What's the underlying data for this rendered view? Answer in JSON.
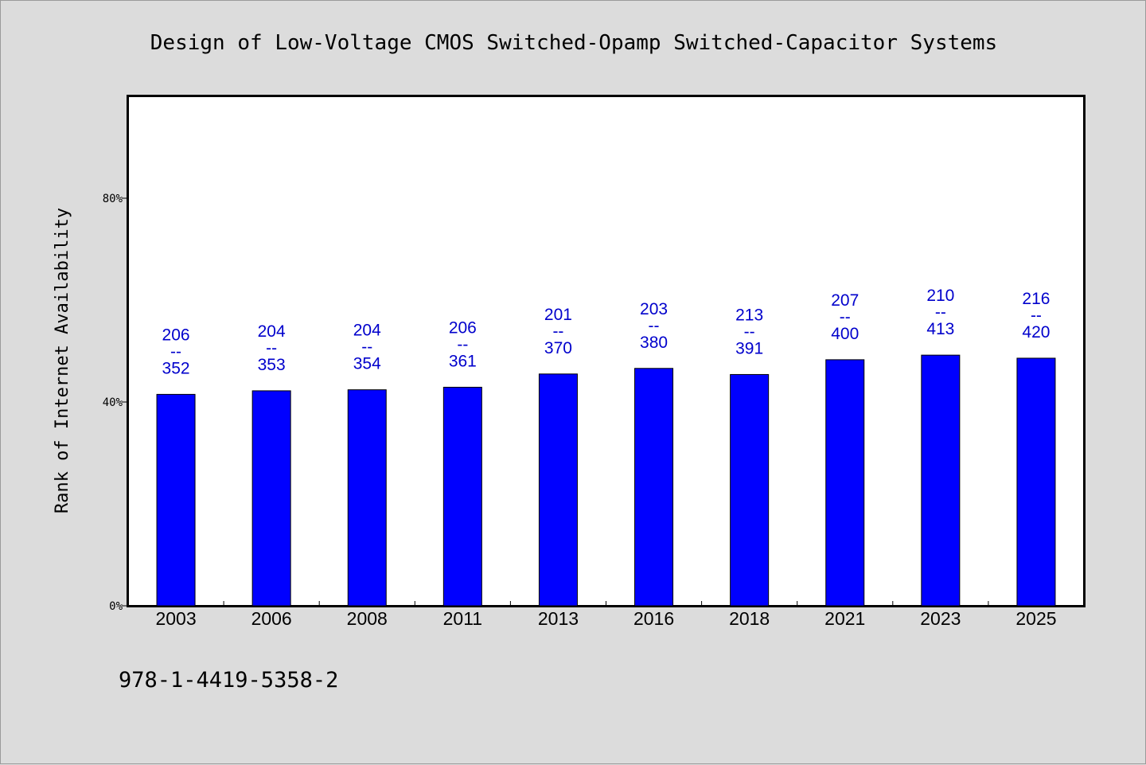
{
  "chart_data": {
    "type": "bar",
    "title": "Design of Low-Voltage CMOS Switched-Opamp Switched-Capacitor Systems",
    "ylabel": "Rank of Internet Availability",
    "xlabel": "",
    "ylim": [
      0,
      100
    ],
    "yticks": [
      {
        "value": 0,
        "label": "0%"
      },
      {
        "value": 40,
        "label": "40%"
      },
      {
        "value": 80,
        "label": "80%"
      }
    ],
    "categories": [
      "2003",
      "2006",
      "2008",
      "2011",
      "2013",
      "2016",
      "2018",
      "2021",
      "2023",
      "2025"
    ],
    "values": [
      41.5,
      42.2,
      42.4,
      42.9,
      45.5,
      46.6,
      45.4,
      48.3,
      49.2,
      48.6
    ],
    "data_labels": [
      {
        "top": "206",
        "sep": "--",
        "bottom": "352"
      },
      {
        "top": "204",
        "sep": "--",
        "bottom": "353"
      },
      {
        "top": "204",
        "sep": "--",
        "bottom": "354"
      },
      {
        "top": "206",
        "sep": "--",
        "bottom": "361"
      },
      {
        "top": "201",
        "sep": "--",
        "bottom": "370"
      },
      {
        "top": "203",
        "sep": "--",
        "bottom": "380"
      },
      {
        "top": "213",
        "sep": "--",
        "bottom": "391"
      },
      {
        "top": "207",
        "sep": "--",
        "bottom": "400"
      },
      {
        "top": "210",
        "sep": "--",
        "bottom": "413"
      },
      {
        "top": "216",
        "sep": "--",
        "bottom": "420"
      }
    ],
    "grid": false,
    "legend": "none"
  },
  "footnote": "978-1-4419-5358-2",
  "colors": {
    "bar": "#0000ff",
    "label": "#0000cc",
    "background": "#dcdcdc",
    "plot_background": "#ffffff"
  }
}
